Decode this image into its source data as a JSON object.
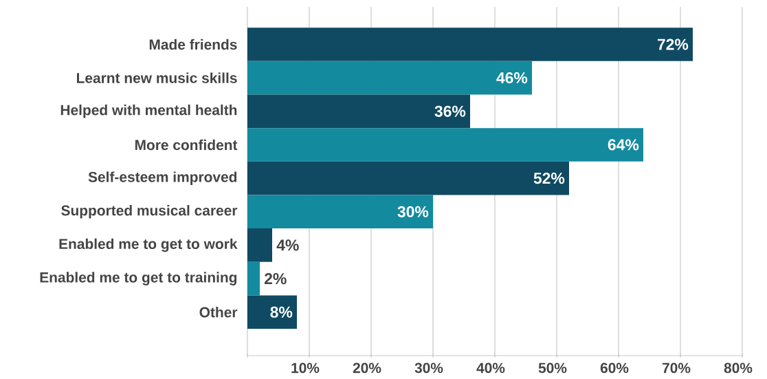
{
  "chart_data": {
    "type": "bar",
    "orientation": "horizontal",
    "categories": [
      "Made friends",
      "Learnt new music skills",
      "Helped with mental health",
      "More confident",
      "Self-esteem improved",
      "Supported musical career",
      "Enabled me to get to work",
      "Enabled me to get to training",
      "Other"
    ],
    "values": [
      72,
      46,
      36,
      64,
      52,
      30,
      4,
      2,
      8
    ],
    "colors": [
      "#0f4a62",
      "#148a9e",
      "#0f4a62",
      "#148a9e",
      "#0f4a62",
      "#148a9e",
      "#0f4a62",
      "#148a9e",
      "#0f4a62"
    ],
    "value_labels": [
      "72%",
      "46%",
      "36%",
      "64%",
      "52%",
      "30%",
      "4%",
      "2%",
      "8%"
    ],
    "xlim": [
      0,
      80
    ],
    "xticks": [
      {
        "value": 0,
        "label": null
      },
      {
        "value": 10,
        "label": "10%"
      },
      {
        "value": 20,
        "label": "20%"
      },
      {
        "value": 30,
        "label": "30%"
      },
      {
        "value": 40,
        "label": "40%"
      },
      {
        "value": 50,
        "label": "50%"
      },
      {
        "value": 60,
        "label": "60%"
      },
      {
        "value": 70,
        "label": "70%"
      },
      {
        "value": 80,
        "label": "80%"
      }
    ],
    "grid": "x"
  }
}
